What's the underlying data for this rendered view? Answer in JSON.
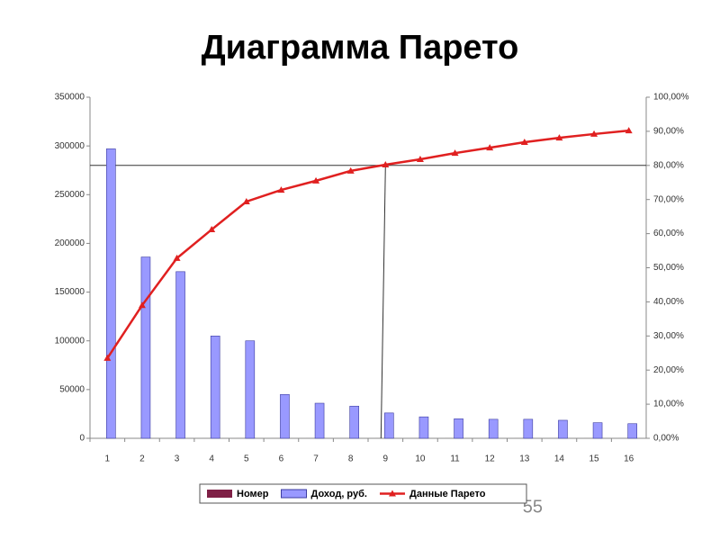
{
  "chart_data": {
    "type": "pareto",
    "title": "Диаграмма Парето",
    "categories": [
      "1",
      "2",
      "3",
      "4",
      "5",
      "6",
      "7",
      "8",
      "9",
      "10",
      "11",
      "12",
      "13",
      "14",
      "15",
      "16"
    ],
    "series": [
      {
        "name": "Номер",
        "color": "#7f2046",
        "values": [
          1,
          2,
          3,
          4,
          5,
          6,
          7,
          8,
          9,
          10,
          11,
          12,
          13,
          14,
          15,
          16
        ]
      },
      {
        "name": "Доход, руб.",
        "color": "#9999ff",
        "values": [
          297000,
          186000,
          171000,
          105000,
          100000,
          45000,
          36000,
          33000,
          26000,
          22000,
          20000,
          19500,
          19500,
          18500,
          16000,
          15000
        ]
      },
      {
        "name": "Данные Парето",
        "color": "#e02020",
        "axis": "y2",
        "values": [
          23.5,
          39,
          52.8,
          61.2,
          69.4,
          72.8,
          75.5,
          78.4,
          80.2,
          81.8,
          83.6,
          85.2,
          86.8,
          88.1,
          89.2,
          90.2
        ]
      }
    ],
    "ylim": [
      0,
      350000
    ],
    "yticks": [
      0,
      50000,
      100000,
      150000,
      200000,
      250000,
      300000,
      350000
    ],
    "y2lim": [
      0,
      100
    ],
    "y2ticks": [
      {
        "value": 0,
        "label": "0,00%"
      },
      {
        "value": 10,
        "label": "10,00%"
      },
      {
        "value": 20,
        "label": "20,00%"
      },
      {
        "value": 30,
        "label": "30,00%"
      },
      {
        "value": 40,
        "label": "40,00%"
      },
      {
        "value": 50,
        "label": "50,00%"
      },
      {
        "value": 60,
        "label": "60,00%"
      },
      {
        "value": 70,
        "label": "70,00%"
      },
      {
        "value": 80,
        "label": "80,00%"
      },
      {
        "value": 90,
        "label": "90,00%"
      },
      {
        "value": 100,
        "label": "100,00%"
      }
    ]
  },
  "slide": {
    "page_number": "55"
  }
}
